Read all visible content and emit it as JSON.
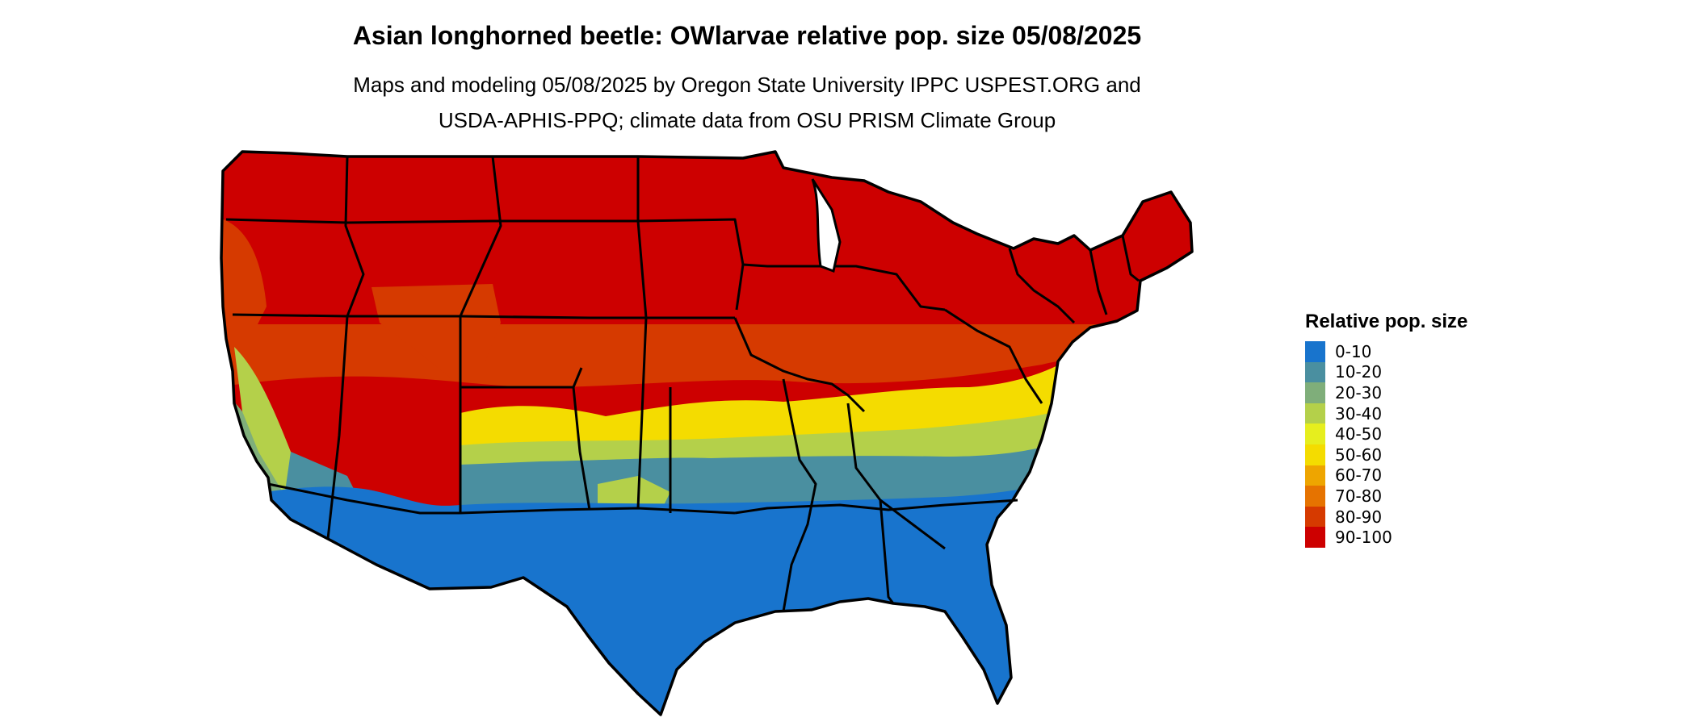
{
  "map": {
    "title": "Asian longhorned beetle: OWlarvae relative pop. size 05/08/2025",
    "subtitle_lines": [
      "Maps and modeling 05/08/2025 by Oregon State University IPPC USPEST.ORG and",
      "USDA-APHIS-PPQ; climate data from OSU PRISM Climate Group"
    ],
    "region": "Conterminous United States",
    "legend": {
      "title": "Relative pop. size",
      "items": [
        {
          "label": "0-10",
          "color": "#1874cd"
        },
        {
          "label": "10-20",
          "color": "#4a8fa0"
        },
        {
          "label": "20-30",
          "color": "#7fae7a"
        },
        {
          "label": "30-40",
          "color": "#b4d04a"
        },
        {
          "label": "40-50",
          "color": "#e6ee1e"
        },
        {
          "label": "50-60",
          "color": "#f4dc00"
        },
        {
          "label": "60-70",
          "color": "#eea500"
        },
        {
          "label": "70-80",
          "color": "#e67300"
        },
        {
          "label": "80-90",
          "color": "#d63a00"
        },
        {
          "label": "90-100",
          "color": "#cd0000"
        }
      ]
    }
  }
}
